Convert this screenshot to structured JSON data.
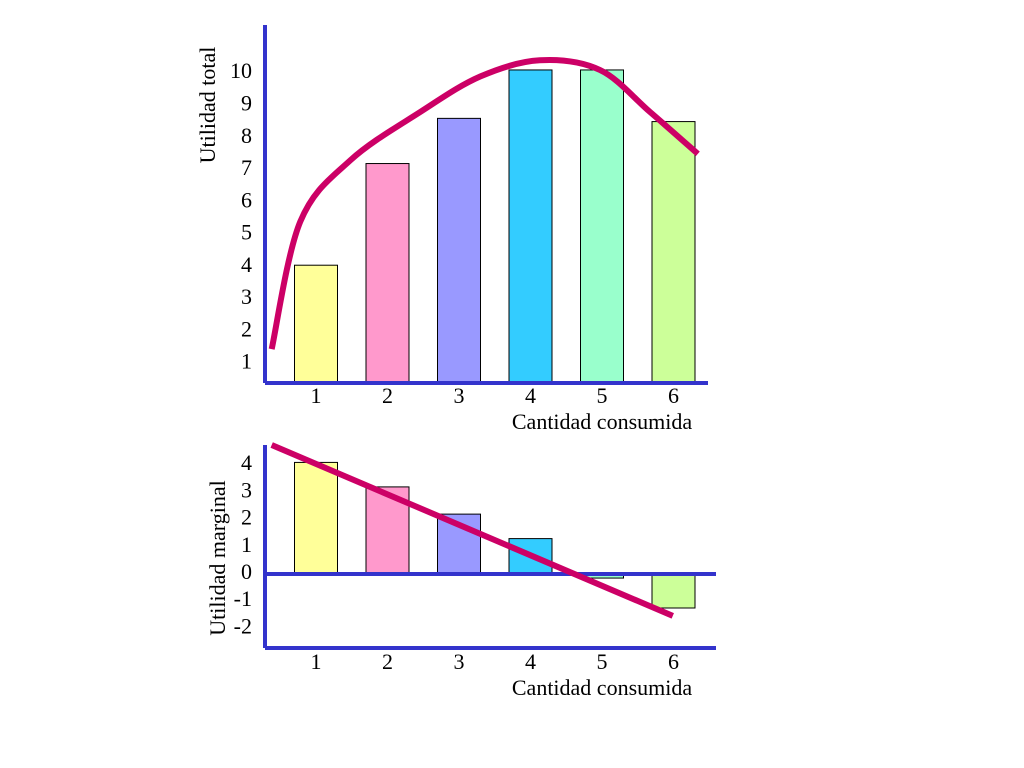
{
  "chart_data": [
    {
      "type": "bar",
      "ylabel": "Utilidad total",
      "xlabel": "Cantidad consumida",
      "categories": [
        "1",
        "2",
        "3",
        "4",
        "5",
        "6"
      ],
      "values": [
        4.05,
        7.2,
        8.6,
        10.1,
        10.1,
        8.5
      ],
      "colors": [
        "#ffff99",
        "#ff99cc",
        "#9999ff",
        "#33ccff",
        "#99ffcc",
        "#ccff99"
      ],
      "ylim": [
        0.4,
        11.4
      ],
      "yticks": [
        1,
        2,
        3,
        4,
        5,
        6,
        7,
        8,
        9,
        10
      ],
      "curve": {
        "color": "#cc0066",
        "smooth": true,
        "x": [
          0.38,
          0.78,
          1.48,
          2.46,
          3.3,
          4.13,
          4.97,
          5.67,
          6.34
        ],
        "values": [
          1.45,
          5.4,
          7.3,
          8.8,
          9.9,
          10.4,
          10.1,
          8.8,
          7.5
        ]
      }
    },
    {
      "type": "bar",
      "ylabel": "Utilidad marginal",
      "xlabel": "Cantidad consumida",
      "categories": [
        "1",
        "2",
        "3",
        "4",
        "5",
        "6"
      ],
      "values": [
        4.1,
        3.2,
        2.2,
        1.3,
        -0.15,
        -1.25
      ],
      "colors": [
        "#ffff99",
        "#ff99cc",
        "#9999ff",
        "#33ccff",
        "#99ffcc",
        "#ccff99"
      ],
      "ylim": [
        -2.72,
        4.74
      ],
      "yticks": [
        4,
        3,
        2,
        1,
        0,
        -1,
        -2
      ],
      "curve": {
        "color": "#cc0066",
        "smooth": false,
        "x": [
          0.38,
          5.99
        ],
        "values": [
          4.74,
          -1.54
        ]
      }
    }
  ]
}
